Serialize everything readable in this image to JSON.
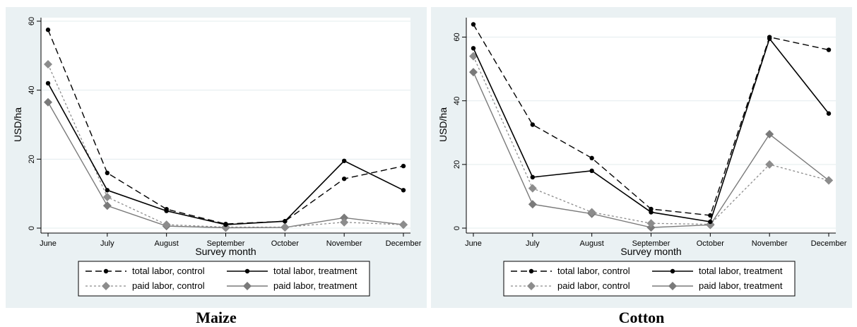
{
  "chart_data": [
    {
      "type": "line",
      "caption": "Maize",
      "xlabel": "Survey month",
      "ylabel": "USD/ha",
      "categories": [
        "June",
        "July",
        "August",
        "September",
        "October",
        "November",
        "December"
      ],
      "ylim": [
        0,
        60
      ],
      "yticks": [
        0,
        20,
        40,
        60
      ],
      "grid": true,
      "legend_position": "bottom",
      "series": [
        {
          "name": "total labor, control",
          "values": [
            57.5,
            16,
            5.5,
            1.2,
            2,
            14.3,
            18
          ]
        },
        {
          "name": "total labor, treatment",
          "values": [
            42,
            11,
            5,
            1,
            2,
            19.5,
            11
          ]
        },
        {
          "name": "paid labor, control",
          "values": [
            47.5,
            9,
            1,
            0.3,
            0.3,
            1.7,
            1
          ]
        },
        {
          "name": "paid labor, treatment",
          "values": [
            36.5,
            6.5,
            0.6,
            0.1,
            0.2,
            3,
            1
          ]
        }
      ]
    },
    {
      "type": "line",
      "caption": "Cotton",
      "xlabel": "Survey month",
      "ylabel": "USD/ha",
      "categories": [
        "June",
        "July",
        "August",
        "September",
        "October",
        "November",
        "December"
      ],
      "ylim": [
        0,
        65
      ],
      "yticks": [
        0,
        20,
        40,
        60
      ],
      "grid": true,
      "legend_position": "bottom",
      "series": [
        {
          "name": "total labor, control",
          "values": [
            64,
            32.5,
            22,
            6,
            4,
            60,
            56
          ]
        },
        {
          "name": "total labor, treatment",
          "values": [
            56.5,
            16,
            18,
            5,
            2,
            59.5,
            36
          ]
        },
        {
          "name": "paid labor, control",
          "values": [
            54,
            12.5,
            5,
            1.5,
            1.2,
            20,
            15
          ]
        },
        {
          "name": "paid labor, treatment",
          "values": [
            49,
            7.5,
            4.5,
            0.2,
            1,
            29.5,
            15
          ]
        }
      ]
    }
  ],
  "series_styles": [
    {
      "color": "#000000",
      "dash": "9,5",
      "marker": "circle",
      "width": 1.4
    },
    {
      "color": "#000000",
      "dash": "",
      "marker": "circle",
      "width": 1.6
    },
    {
      "color": "#8c8c8c",
      "dash": "3,3",
      "marker": "diamond",
      "width": 1.3
    },
    {
      "color": "#7a7a7a",
      "dash": "",
      "marker": "diamond",
      "width": 1.4
    }
  ],
  "colors": {
    "background": "#eaf1f3",
    "plot_area": "#ffffff",
    "grid": "#e3ecee"
  }
}
